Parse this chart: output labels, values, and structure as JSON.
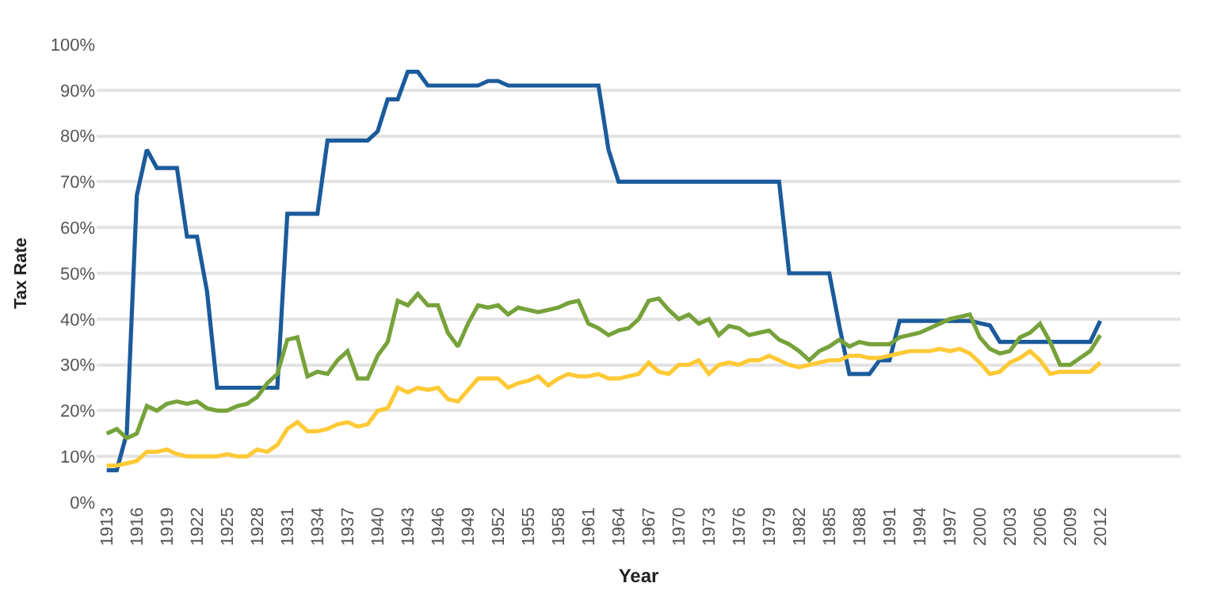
{
  "chart_data": {
    "type": "line",
    "xlabel": "Year",
    "ylabel": "Tax Rate",
    "x": [
      1913,
      1914,
      1915,
      1916,
      1917,
      1918,
      1919,
      1920,
      1921,
      1922,
      1923,
      1924,
      1925,
      1926,
      1927,
      1928,
      1929,
      1930,
      1931,
      1932,
      1933,
      1934,
      1935,
      1936,
      1937,
      1938,
      1939,
      1940,
      1941,
      1942,
      1943,
      1944,
      1945,
      1946,
      1947,
      1948,
      1949,
      1950,
      1951,
      1952,
      1953,
      1954,
      1955,
      1956,
      1957,
      1958,
      1959,
      1960,
      1961,
      1962,
      1963,
      1964,
      1965,
      1966,
      1967,
      1968,
      1969,
      1970,
      1971,
      1972,
      1973,
      1974,
      1975,
      1976,
      1977,
      1978,
      1979,
      1980,
      1981,
      1982,
      1983,
      1984,
      1985,
      1986,
      1987,
      1988,
      1989,
      1990,
      1991,
      1992,
      1993,
      1994,
      1995,
      1996,
      1997,
      1998,
      1999,
      2000,
      2001,
      2002,
      2003,
      2004,
      2005,
      2006,
      2007,
      2008,
      2009,
      2010,
      2011,
      2012
    ],
    "series": [
      {
        "color": "#1b5b9b",
        "values": [
          7,
          7,
          15,
          67,
          77,
          73,
          73,
          73,
          58,
          58,
          46,
          25,
          25,
          25,
          25,
          25,
          25,
          25,
          63,
          63,
          63,
          63,
          79,
          79,
          79,
          79,
          79,
          81,
          88,
          88,
          94,
          94,
          91,
          91,
          91,
          91,
          91,
          91,
          92,
          92,
          91,
          91,
          91,
          91,
          91,
          91,
          91,
          91,
          91,
          91,
          77,
          70,
          70,
          70,
          70,
          70,
          70,
          70,
          70,
          70,
          70,
          70,
          70,
          70,
          70,
          70,
          70,
          70,
          50,
          50,
          50,
          50,
          50,
          38.5,
          28,
          28,
          28,
          31,
          31,
          39.6,
          39.6,
          39.6,
          39.6,
          39.6,
          39.6,
          39.6,
          39.6,
          39.1,
          38.6,
          35,
          35,
          35,
          35,
          35,
          35,
          35,
          35,
          35,
          35,
          39.6
        ]
      },
      {
        "color": "#77a23b",
        "values": [
          15,
          16,
          14,
          15,
          21,
          20,
          21.5,
          22,
          21.5,
          22,
          20.5,
          20,
          20,
          21,
          21.5,
          23,
          26,
          28,
          35.5,
          36,
          27.5,
          28.5,
          28,
          31,
          33,
          27,
          27,
          32,
          35,
          44,
          43,
          45.5,
          43,
          43,
          37,
          34,
          39,
          43,
          42.5,
          43,
          41,
          42.5,
          42,
          41.5,
          42,
          42.5,
          43.5,
          44,
          39,
          38,
          36.5,
          37.5,
          38,
          40,
          44,
          44.5,
          42,
          40,
          41,
          39,
          40,
          36.5,
          38.5,
          38,
          36.5,
          37,
          37.5,
          35.5,
          34.5,
          33,
          31,
          33,
          34,
          35.5,
          34,
          35,
          34.5,
          34.5,
          34.5,
          36,
          36.5,
          37,
          38,
          39,
          40,
          40.5,
          41,
          36,
          33.5,
          32.5,
          33,
          36,
          37,
          39,
          35,
          30,
          30,
          31.5,
          33,
          36.5
        ]
      },
      {
        "color": "#fec935",
        "values": [
          8,
          8,
          8.5,
          9,
          11,
          11,
          11.5,
          10.5,
          10,
          10,
          10,
          10,
          10.5,
          10,
          10,
          11.5,
          11,
          12.5,
          16,
          17.5,
          15.5,
          15.5,
          16,
          17,
          17.5,
          16.5,
          17,
          20,
          20.5,
          25,
          24,
          25,
          24.5,
          25,
          22.5,
          22,
          24.5,
          27,
          27,
          27,
          25,
          26,
          26.5,
          27.5,
          25.5,
          27,
          28,
          27.5,
          27.5,
          28,
          27,
          27,
          27.5,
          28,
          30.5,
          28.5,
          28,
          30,
          30,
          31,
          28,
          30,
          30.5,
          30,
          31,
          31,
          32,
          31,
          30,
          29.5,
          30,
          30.5,
          31,
          31,
          32,
          32,
          31.5,
          31.5,
          32,
          32.5,
          33,
          33,
          33,
          33.5,
          33,
          33.5,
          32.5,
          30.5,
          28,
          28.5,
          30.5,
          31.5,
          33,
          31,
          28,
          28.5,
          28.5,
          28.5,
          28.5,
          30.5
        ]
      }
    ],
    "xlim": [
      1912,
      2020
    ],
    "xticks": [
      1913,
      1916,
      1919,
      1922,
      1925,
      1928,
      1931,
      1934,
      1937,
      1940,
      1943,
      1946,
      1949,
      1952,
      1955,
      1958,
      1961,
      1964,
      1967,
      1970,
      1973,
      1976,
      1979,
      1982,
      1985,
      1988,
      1991,
      1994,
      1997,
      2000,
      2003,
      2006,
      2009,
      2012
    ],
    "ylim": [
      0,
      100
    ],
    "yticks": [
      {
        "value": 0,
        "label": "0%"
      },
      {
        "value": 10,
        "label": "10%"
      },
      {
        "value": 20,
        "label": "20%"
      },
      {
        "value": 30,
        "label": "30%"
      },
      {
        "value": 40,
        "label": "40%"
      },
      {
        "value": 50,
        "label": "50%"
      },
      {
        "value": 60,
        "label": "60%"
      },
      {
        "value": 70,
        "label": "70%"
      },
      {
        "value": 80,
        "label": "80%"
      },
      {
        "value": 90,
        "label": "90%"
      },
      {
        "value": 100,
        "label": "100%"
      }
    ],
    "grid": "y",
    "marker": "none",
    "line_style": "solid"
  }
}
